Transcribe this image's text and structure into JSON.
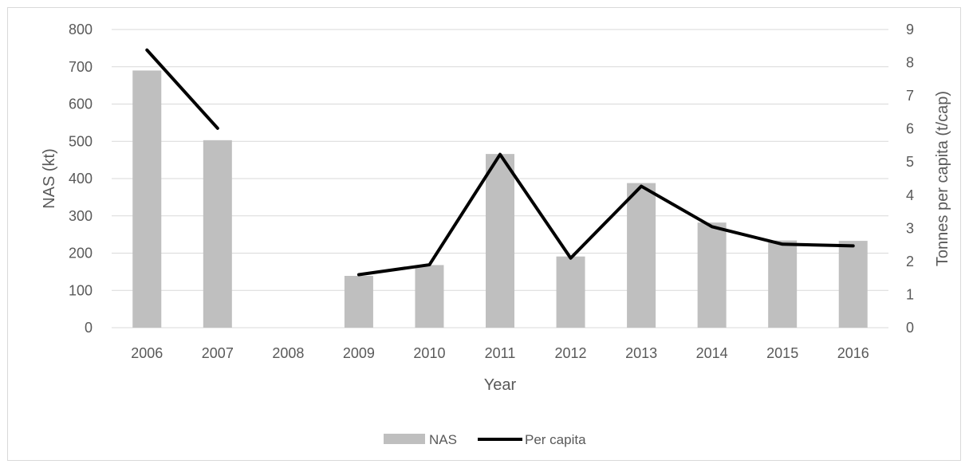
{
  "chart_data": {
    "type": "bar",
    "categories": [
      "2006",
      "2007",
      "2008",
      "2009",
      "2010",
      "2011",
      "2012",
      "2013",
      "2014",
      "2015",
      "2016"
    ],
    "series": [
      {
        "name": "NAS",
        "type": "bar",
        "axis": "left",
        "color": "#bfbfbf",
        "values": [
          690,
          503,
          null,
          139,
          168,
          466,
          191,
          388,
          282,
          234,
          233
        ]
      },
      {
        "name": "Per capita",
        "type": "line",
        "axis": "right",
        "color": "#000000",
        "values": [
          8.38,
          6.02,
          null,
          1.6,
          1.9,
          5.23,
          2.1,
          4.27,
          3.05,
          2.52,
          2.47
        ]
      }
    ],
    "xlabel": "Year",
    "ylabel": "NAS (kt)",
    "y2label": "Tonnes per capita (t/cap)",
    "ylim": [
      0,
      800
    ],
    "y2lim": [
      0,
      9
    ],
    "yticks": [
      "0",
      "100",
      "200",
      "300",
      "400",
      "500",
      "600",
      "700",
      "800"
    ],
    "y2ticks": [
      "0",
      "1",
      "2",
      "3",
      "4",
      "5",
      "6",
      "7",
      "8",
      "9"
    ],
    "grid": true,
    "legend": "bottom",
    "gridcolor": "#d9d9d9"
  }
}
